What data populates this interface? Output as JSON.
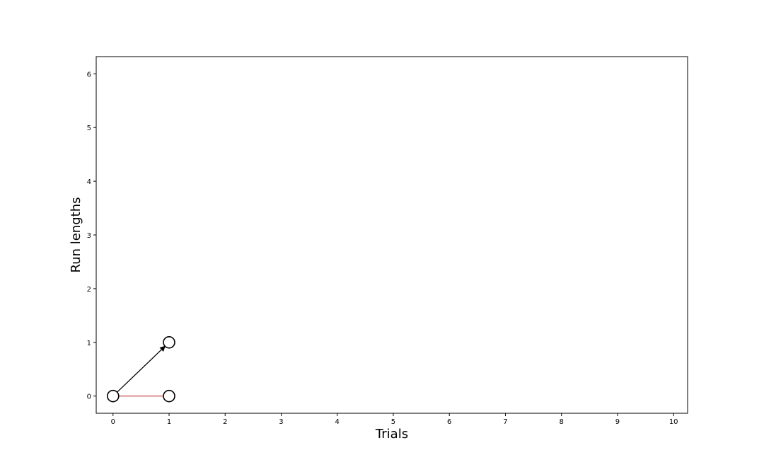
{
  "chart_data": {
    "type": "scatter",
    "title": "",
    "xlabel": "Trials",
    "ylabel": "Run lengths",
    "xlim": [
      -0.3,
      10.25
    ],
    "ylim": [
      -0.32,
      6.32
    ],
    "xticks": [
      "0",
      "1",
      "2",
      "3",
      "4",
      "5",
      "6",
      "7",
      "8",
      "9",
      "10"
    ],
    "yticks": [
      "0",
      "1",
      "2",
      "3",
      "4",
      "5",
      "6"
    ],
    "grid": false,
    "nodes": [
      {
        "x": 0,
        "y": 0
      },
      {
        "x": 1,
        "y": 0
      },
      {
        "x": 1,
        "y": 1
      }
    ],
    "edges": [
      {
        "from": [
          0,
          0
        ],
        "to": [
          1,
          1
        ],
        "color": "#000000",
        "arrow": true
      },
      {
        "from": [
          0,
          0
        ],
        "to": [
          1,
          0
        ],
        "color": "#b22222",
        "arrow": false
      }
    ]
  }
}
